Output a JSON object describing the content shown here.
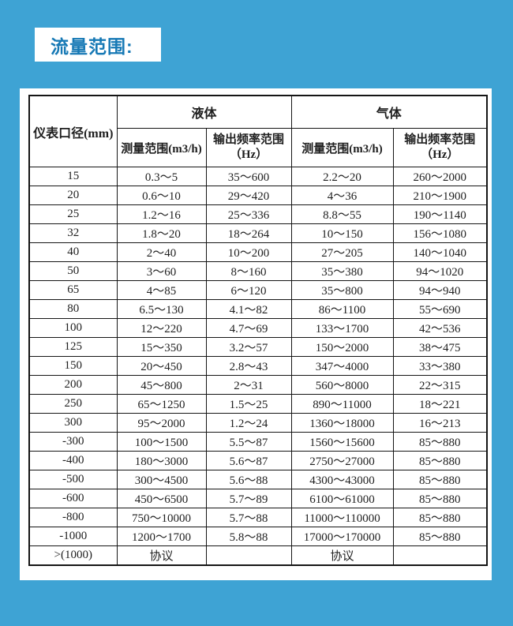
{
  "page": {
    "title": "流量范围:",
    "background_color": "#3EA3D4",
    "title_color": "#1779B5",
    "card_color": "#FFFFFF"
  },
  "table": {
    "corner_header": "仪表口径(mm)",
    "groups": [
      {
        "label": "液体",
        "columns": [
          "测量范围(m3/h)",
          "输出频率范围\n（Hz）"
        ]
      },
      {
        "label": "气体",
        "columns": [
          "测量范围(m3/h)",
          "输出频率范围\n（Hz）"
        ]
      }
    ],
    "rows": [
      [
        "15",
        "0.3～5",
        "35～600",
        "2.2～20",
        "260～2000"
      ],
      [
        "20",
        "0.6～10",
        "29～420",
        "4～36",
        "210～1900"
      ],
      [
        "25",
        "1.2～16",
        "25～336",
        "8.8～55",
        "190～1140"
      ],
      [
        "32",
        "1.8～20",
        "18～264",
        "10～150",
        "156～1080"
      ],
      [
        "40",
        "2～40",
        "10～200",
        "27～205",
        "140～1040"
      ],
      [
        "50",
        "3～60",
        "8～160",
        "35～380",
        "94～1020"
      ],
      [
        "65",
        "4～85",
        "6～120",
        "35～800",
        "94～940"
      ],
      [
        "80",
        "6.5～130",
        "4.1～82",
        "86～1100",
        "55～690"
      ],
      [
        "100",
        "12～220",
        "4.7～69",
        "133～1700",
        "42～536"
      ],
      [
        "125",
        "15～350",
        "3.2～57",
        "150～2000",
        "38～475"
      ],
      [
        "150",
        "20～450",
        "2.8～43",
        "347～4000",
        "33～380"
      ],
      [
        "200",
        "45～800",
        "2～31",
        "560～8000",
        "22～315"
      ],
      [
        "250",
        "65～1250",
        "1.5～25",
        "890～11000",
        "18～221"
      ],
      [
        "300",
        "95～2000",
        "1.2～24",
        "1360～18000",
        "16～213"
      ],
      [
        "-300",
        "100～1500",
        "5.5～87",
        "1560～15600",
        "85～880"
      ],
      [
        "-400",
        "180～3000",
        "5.6～87",
        "2750～27000",
        "85～880"
      ],
      [
        "-500",
        "300～4500",
        "5.6～88",
        "4300～43000",
        "85～880"
      ],
      [
        "-600",
        "450～6500",
        "5.7～89",
        "6100～61000",
        "85～880"
      ],
      [
        "-800",
        "750～10000",
        "5.7～88",
        "11000～110000",
        "85～880"
      ],
      [
        "-1000",
        "1200～1700",
        "5.8～88",
        "17000～170000",
        "85～880"
      ],
      [
        ">(1000)",
        "协议",
        "",
        "协议",
        ""
      ]
    ]
  }
}
